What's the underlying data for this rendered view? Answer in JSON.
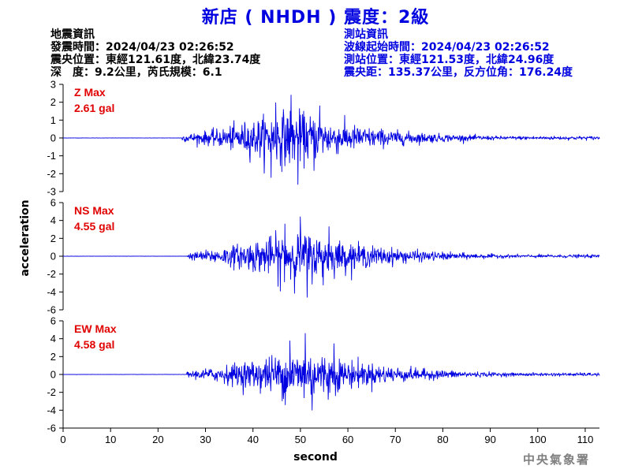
{
  "header": {
    "title": "新店 ( NHDH ) 震度：2級"
  },
  "quake_info": {
    "heading": "地震資訊",
    "origin_time": "發震時間：2024/04/23 02:26:52",
    "epicenter": "震央位置：東經121.61度，北緯23.74度",
    "depth_magnitude": "深　度：9.2公里，芮氏規模：6.1"
  },
  "station_info": {
    "heading": "測站資訊",
    "wave_start": "波線起始時間：2024/04/23 02:26:52",
    "location": "測站位置：東經121.53度，北緯24.96度",
    "distance": "震央距：135.37公里，反方位角：176.24度"
  },
  "credit": "中央氣象署",
  "colors": {
    "trace": "#0000e0",
    "title": "#0000e0",
    "max_label": "#e00000",
    "axis": "#000000"
  },
  "chart_data": {
    "type": "line",
    "xlabel": "second",
    "ylabel": "acceleration",
    "xlim": [
      0,
      113
    ],
    "xticks": [
      0,
      10,
      20,
      30,
      40,
      50,
      60,
      70,
      80,
      90,
      100,
      110
    ],
    "grid": false,
    "panels": [
      {
        "name": "Z",
        "max_label": "Z Max",
        "max_value": "2.61 gal",
        "ylim": [
          -3,
          3
        ],
        "yticks": [
          -3,
          -2,
          -1,
          0,
          1,
          2,
          3
        ],
        "onset_s": 25,
        "envelope_peak_s": 48,
        "peak_pos": 2.4,
        "peak_neg": -2.6
      },
      {
        "name": "NS",
        "max_label": "NS Max",
        "max_value": "4.55 gal",
        "ylim": [
          -6,
          6
        ],
        "yticks": [
          -6,
          -4,
          -2,
          0,
          2,
          4,
          6
        ],
        "onset_s": 26,
        "envelope_peak_s": 50,
        "peak_pos": 4.4,
        "peak_neg": -4.6
      },
      {
        "name": "EW",
        "max_label": "EW Max",
        "max_value": "4.58 gal",
        "ylim": [
          -6,
          6
        ],
        "yticks": [
          -6,
          -4,
          -2,
          0,
          2,
          4,
          6
        ],
        "onset_s": 26,
        "envelope_peak_s": 51,
        "peak_pos": 4.6,
        "peak_neg": -4.0
      }
    ]
  }
}
